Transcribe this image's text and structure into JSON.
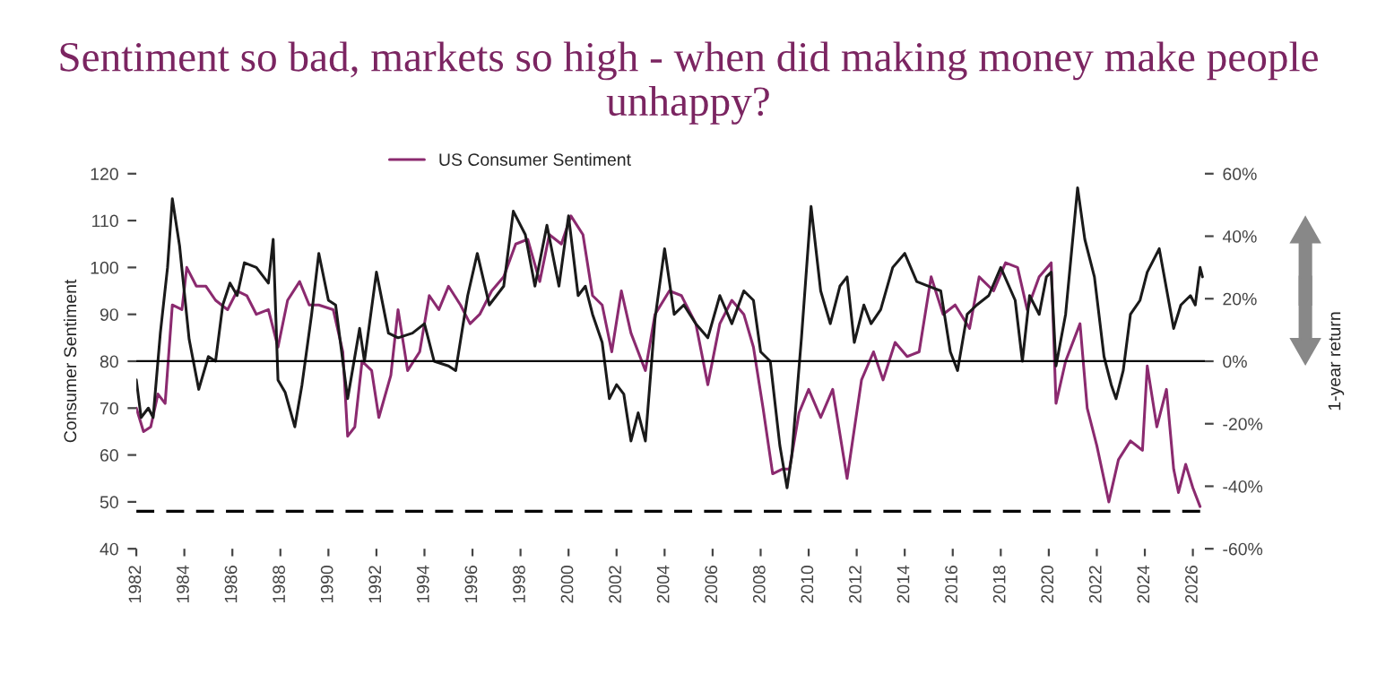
{
  "chart_data": {
    "type": "line",
    "title": "Sentiment so bad, markets so high - when did making money make people unhappy?",
    "ylabel": "Consumer Sentiment",
    "y2label": "1-year return",
    "xlim": [
      1982,
      2026.5
    ],
    "xticks": [
      1982,
      1984,
      1986,
      1988,
      1990,
      1992,
      1994,
      1996,
      1998,
      2000,
      2002,
      2004,
      2006,
      2008,
      2010,
      2012,
      2014,
      2016,
      2018,
      2020,
      2022,
      2024,
      2026
    ],
    "ylim": [
      40,
      120
    ],
    "yticks": [
      40,
      50,
      60,
      70,
      80,
      90,
      100,
      110,
      120
    ],
    "y2lim": [
      -60,
      60
    ],
    "y2ticks": [
      {
        "value": -60,
        "label": "-60%"
      },
      {
        "value": -40,
        "label": "-40%"
      },
      {
        "value": -20,
        "label": "-20%"
      },
      {
        "value": 0,
        "label": "0%"
      },
      {
        "value": 20,
        "label": "20%"
      },
      {
        "value": 40,
        "label": "40%"
      },
      {
        "value": 60,
        "label": "60%"
      }
    ],
    "grid": false,
    "legend": "top",
    "line_style": "solid",
    "marker": "none",
    "ref_lines": [
      {
        "axis": "y2",
        "value": 0,
        "color": "#000000",
        "line_style": "solid"
      },
      {
        "axis": "y",
        "value": 48,
        "color": "#000000",
        "line_style": "dashed"
      }
    ],
    "series": [
      {
        "name": "US Consumer Sentiment",
        "color": "#8b2a6f",
        "axis": "y",
        "x": [
          1982.0,
          1982.3,
          1982.6,
          1982.9,
          1983.2,
          1983.5,
          1983.9,
          1984.1,
          1984.5,
          1984.9,
          1985.3,
          1985.8,
          1986.2,
          1986.6,
          1987.0,
          1987.5,
          1987.9,
          1988.3,
          1988.8,
          1989.2,
          1989.6,
          1990.2,
          1990.6,
          1990.8,
          1991.1,
          1991.4,
          1991.8,
          1992.1,
          1992.6,
          1992.9,
          1993.3,
          1993.8,
          1994.2,
          1994.6,
          1995.0,
          1995.5,
          1995.9,
          1996.3,
          1996.8,
          1997.3,
          1997.8,
          1998.3,
          1998.8,
          1999.2,
          1999.7,
          2000.1,
          2000.6,
          2001.0,
          2001.4,
          2001.8,
          2002.2,
          2002.6,
          2003.2,
          2003.6,
          2004.2,
          2004.7,
          2005.3,
          2005.8,
          2006.3,
          2006.8,
          2007.3,
          2007.7,
          2008.1,
          2008.5,
          2008.9,
          2009.2,
          2009.6,
          2010.0,
          2010.5,
          2011.0,
          2011.6,
          2012.2,
          2012.7,
          2013.1,
          2013.6,
          2014.1,
          2014.6,
          2015.1,
          2015.6,
          2016.1,
          2016.7,
          2017.1,
          2017.7,
          2018.2,
          2018.7,
          2019.1,
          2019.6,
          2020.1,
          2020.3,
          2020.7,
          2021.3,
          2021.6,
          2022.0,
          2022.5,
          2022.9,
          2023.4,
          2023.9,
          2024.1,
          2024.5,
          2024.9,
          2025.2,
          2025.4,
          2025.7,
          2026.0,
          2026.3
        ],
        "values": [
          70,
          65,
          66,
          73,
          71,
          92,
          91,
          100,
          96,
          96,
          93,
          91,
          95,
          94,
          90,
          91,
          83,
          93,
          97,
          92,
          92,
          91,
          82,
          64,
          66,
          80,
          78,
          68,
          77,
          91,
          78,
          82,
          94,
          91,
          96,
          92,
          88,
          90,
          95,
          98,
          105,
          106,
          97,
          107,
          105,
          111,
          107,
          94,
          92,
          82,
          95,
          86,
          78,
          90,
          95,
          94,
          88,
          75,
          88,
          93,
          90,
          83,
          70,
          56,
          57,
          57,
          69,
          74,
          68,
          74,
          55,
          76,
          82,
          76,
          84,
          81,
          82,
          98,
          90,
          92,
          87,
          98,
          95,
          101,
          100,
          91,
          98,
          101,
          71,
          80,
          88,
          70,
          62,
          50,
          59,
          63,
          61,
          79,
          66,
          74,
          57,
          52,
          58,
          53,
          49
        ]
      },
      {
        "color": "#1a1a1a",
        "axis": "y2",
        "x": [
          1982.0,
          1982.2,
          1982.5,
          1982.7,
          1983.0,
          1983.3,
          1983.5,
          1983.8,
          1984.2,
          1984.6,
          1985.0,
          1985.3,
          1985.6,
          1985.9,
          1986.2,
          1986.5,
          1987.0,
          1987.5,
          1987.7,
          1987.9,
          1988.2,
          1988.6,
          1988.9,
          1989.3,
          1989.6,
          1990.0,
          1990.3,
          1990.8,
          1991.3,
          1991.5,
          1992.0,
          1992.5,
          1992.9,
          1993.5,
          1994.0,
          1994.4,
          1995.0,
          1995.3,
          1995.8,
          1996.2,
          1996.7,
          1997.3,
          1997.7,
          1998.2,
          1998.6,
          1999.1,
          1999.6,
          2000.0,
          2000.4,
          2000.7,
          2001.0,
          2001.4,
          2001.7,
          2002.0,
          2002.3,
          2002.6,
          2002.9,
          2003.2,
          2003.6,
          2004.0,
          2004.4,
          2004.8,
          2005.3,
          2005.8,
          2006.3,
          2006.8,
          2007.3,
          2007.7,
          2008.0,
          2008.4,
          2008.8,
          2009.1,
          2009.3,
          2009.7,
          2010.1,
          2010.5,
          2010.9,
          2011.3,
          2011.6,
          2011.9,
          2012.3,
          2012.6,
          2013.0,
          2013.5,
          2014.0,
          2014.5,
          2015.0,
          2015.5,
          2015.9,
          2016.2,
          2016.6,
          2017.0,
          2017.5,
          2018.0,
          2018.6,
          2018.9,
          2019.2,
          2019.6,
          2019.9,
          2020.1,
          2020.3,
          2020.7,
          2021.2,
          2021.5,
          2021.9,
          2022.3,
          2022.6,
          2022.8,
          2023.1,
          2023.4,
          2023.8,
          2024.1,
          2024.6,
          2025.2,
          2025.5,
          2025.9,
          2026.1,
          2026.3,
          2026.4
        ],
        "values": [
          -6,
          -18,
          -15,
          -18,
          9,
          30,
          52,
          37,
          7,
          -9,
          1.5,
          0,
          18,
          25,
          21,
          31.5,
          30,
          25,
          39,
          -6,
          -10,
          -21,
          -7.5,
          15,
          34.5,
          19.5,
          18,
          -12,
          10.5,
          0,
          28.5,
          9,
          7.5,
          9,
          12,
          0,
          -1.5,
          -3,
          21,
          34.5,
          18,
          24,
          48,
          40.5,
          24,
          43.5,
          24,
          46.5,
          21,
          24,
          15,
          6,
          -12,
          -7.5,
          -10.5,
          -25.5,
          -16.5,
          -25.5,
          13.5,
          36,
          15,
          18,
          12,
          7.5,
          21,
          12,
          22.5,
          19.5,
          3,
          0,
          -27,
          -40.5,
          -30,
          7.5,
          49.5,
          22.5,
          12,
          24,
          27,
          6,
          18,
          12,
          16.5,
          30,
          34.5,
          25.5,
          24,
          22.5,
          3,
          -3,
          15,
          18,
          21,
          30,
          19.5,
          0,
          21,
          15,
          27,
          28.5,
          -1.5,
          15,
          55.5,
          39,
          27,
          1.5,
          -7.5,
          -12,
          -3,
          15,
          19.5,
          28.5,
          36,
          10.5,
          18,
          21,
          18,
          30,
          27
        ]
      }
    ]
  }
}
